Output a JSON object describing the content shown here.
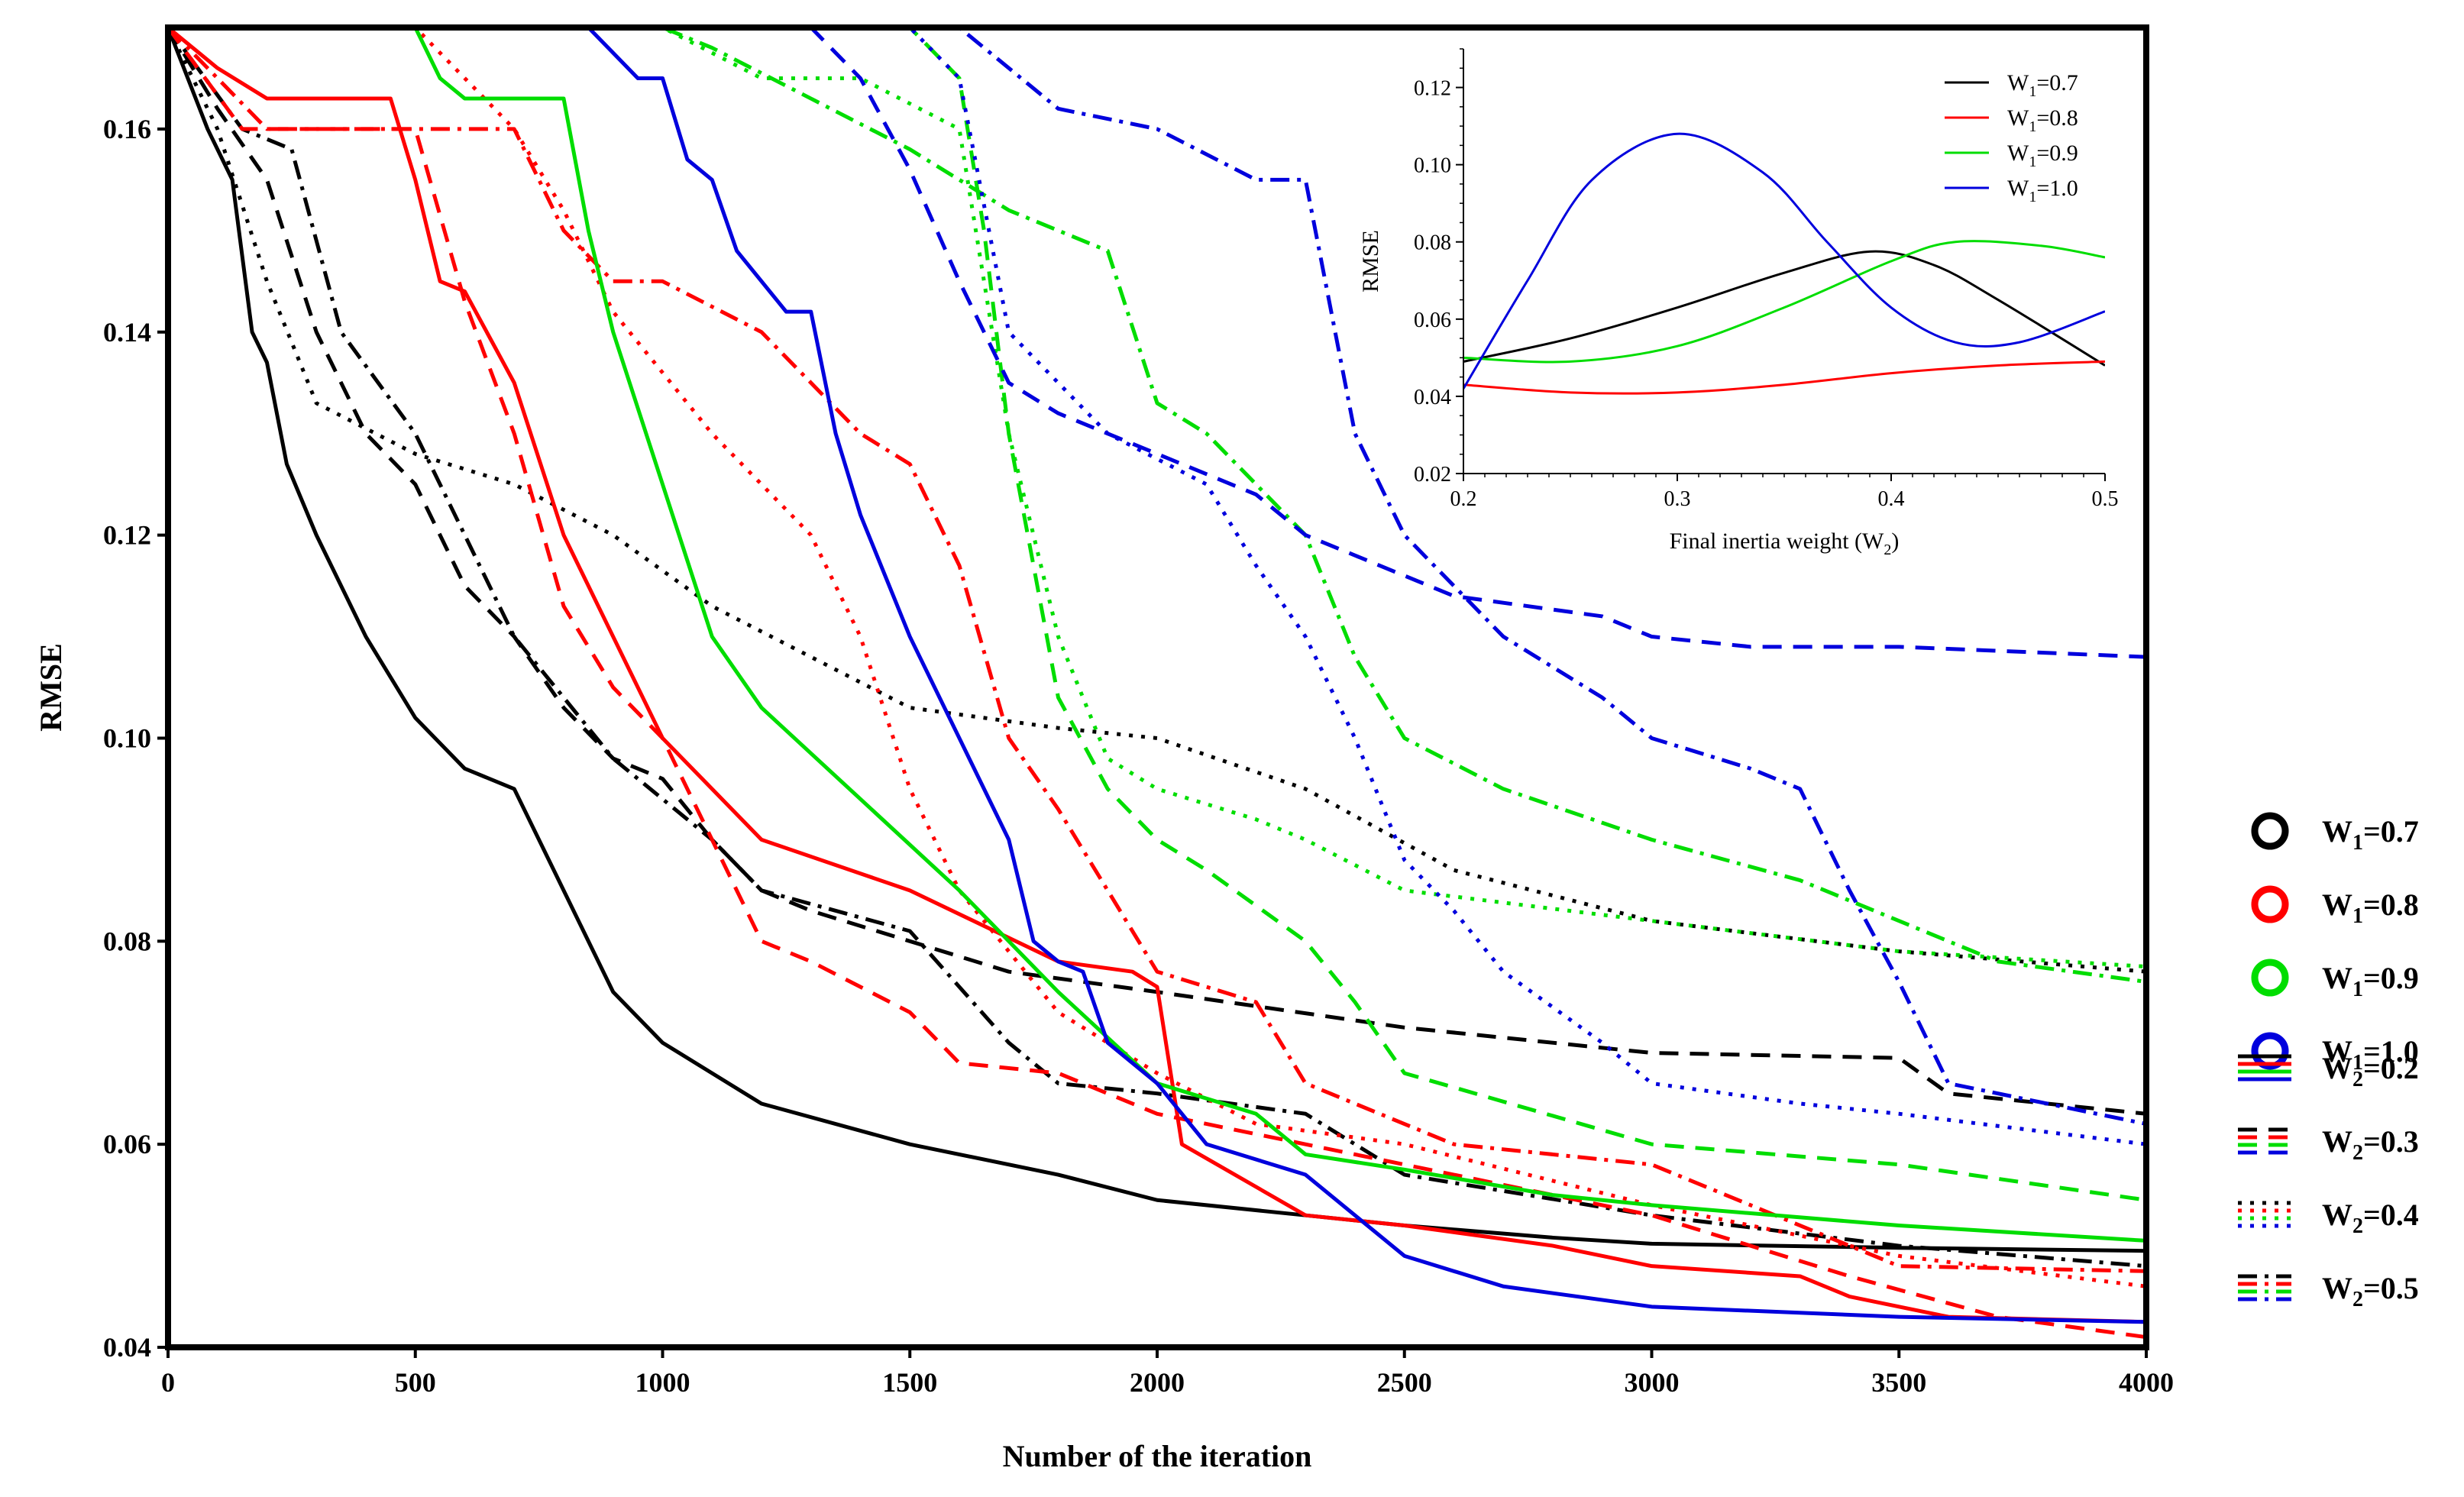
{
  "chart_data": [
    {
      "type": "line",
      "xlabel": "Number of the iteration",
      "ylabel": "RMSE",
      "xlim": [
        0,
        4000
      ],
      "ylim": [
        0.04,
        0.17
      ],
      "xticks": [
        "0",
        "500",
        "1000",
        "1500",
        "2000",
        "2500",
        "3000",
        "3500",
        "4000"
      ],
      "yticks": [
        "0.04",
        "0.06",
        "0.08",
        "0.10",
        "0.12",
        "0.14",
        "0.16"
      ],
      "xtick_values": [
        0,
        500,
        1000,
        1500,
        2000,
        2500,
        3000,
        3500,
        4000
      ],
      "ytick_values": [
        0.04,
        0.06,
        0.08,
        0.1,
        0.12,
        0.14,
        0.16
      ],
      "grid": false,
      "legend_position": "right",
      "color_legend": [
        {
          "label_main": "W",
          "label_sub": "1",
          "label_tail": "=0.7",
          "color": "#000000"
        },
        {
          "label_main": "W",
          "label_sub": "1",
          "label_tail": "=0.8",
          "color": "#ff0000"
        },
        {
          "label_main": "W",
          "label_sub": "1",
          "label_tail": "=0.9",
          "color": "#00dd00"
        },
        {
          "label_main": "W",
          "label_sub": "1",
          "label_tail": "=1.0",
          "color": "#0000dd"
        }
      ],
      "style_legend": [
        {
          "label_main": "W",
          "label_sub": "2",
          "label_tail": "=0.2",
          "dash": "solid"
        },
        {
          "label_main": "W",
          "label_sub": "2",
          "label_tail": "=0.3",
          "dash": "dashed"
        },
        {
          "label_main": "W",
          "label_sub": "2",
          "label_tail": "=0.4",
          "dash": "dotted"
        },
        {
          "label_main": "W",
          "label_sub": "2",
          "label_tail": "=0.5",
          "dash": "dashdot"
        }
      ],
      "series": [
        {
          "w1": 0.7,
          "w2": 0.2,
          "color": "#000000",
          "dash": "solid",
          "x": [
            0,
            40,
            80,
            130,
            170,
            200,
            240,
            300,
            400,
            500,
            600,
            700,
            800,
            900,
            1000,
            1200,
            1500,
            1800,
            2000,
            2300,
            2500,
            2800,
            3000,
            3500,
            4000
          ],
          "y": [
            0.17,
            0.165,
            0.16,
            0.155,
            0.14,
            0.137,
            0.127,
            0.12,
            0.11,
            0.102,
            0.097,
            0.095,
            0.085,
            0.075,
            0.07,
            0.064,
            0.06,
            0.057,
            0.0545,
            0.053,
            0.052,
            0.0508,
            0.0502,
            0.0498,
            0.0495
          ]
        },
        {
          "w1": 0.7,
          "w2": 0.3,
          "color": "#000000",
          "dash": "dashed",
          "x": [
            0,
            100,
            200,
            300,
            400,
            500,
            600,
            700,
            800,
            900,
            1000,
            1100,
            1200,
            1300,
            1500,
            1700,
            2000,
            2500,
            3000,
            3500,
            3600,
            4000
          ],
          "y": [
            0.17,
            0.162,
            0.155,
            0.14,
            0.13,
            0.125,
            0.115,
            0.11,
            0.103,
            0.098,
            0.096,
            0.09,
            0.085,
            0.083,
            0.08,
            0.077,
            0.075,
            0.0715,
            0.069,
            0.0685,
            0.065,
            0.063
          ]
        },
        {
          "w1": 0.7,
          "w2": 0.4,
          "color": "#000000",
          "dash": "dotted",
          "x": [
            0,
            100,
            200,
            300,
            500,
            700,
            900,
            1100,
            1300,
            1500,
            1800,
            2000,
            2300,
            2600,
            3000,
            3500,
            4000
          ],
          "y": [
            0.17,
            0.16,
            0.145,
            0.133,
            0.128,
            0.125,
            0.12,
            0.113,
            0.108,
            0.103,
            0.101,
            0.1,
            0.095,
            0.087,
            0.082,
            0.079,
            0.077
          ]
        },
        {
          "w1": 0.7,
          "w2": 0.5,
          "color": "#000000",
          "dash": "dashdot",
          "x": [
            0,
            150,
            250,
            350,
            500,
            700,
            900,
            1100,
            1200,
            1500,
            1700,
            1800,
            2000,
            2300,
            2500,
            3000,
            3500,
            4000
          ],
          "y": [
            0.17,
            0.16,
            0.158,
            0.14,
            0.13,
            0.11,
            0.098,
            0.09,
            0.085,
            0.081,
            0.07,
            0.066,
            0.065,
            0.063,
            0.057,
            0.053,
            0.05,
            0.048
          ]
        },
        {
          "w1": 0.8,
          "w2": 0.2,
          "color": "#ff0000",
          "dash": "solid",
          "x": [
            0,
            100,
            200,
            300,
            450,
            500,
            550,
            600,
            700,
            800,
            900,
            1000,
            1200,
            1500,
            1800,
            1950,
            2000,
            2050,
            2300,
            2500,
            2800,
            3000,
            3300,
            3400,
            3600,
            4000
          ],
          "y": [
            0.17,
            0.166,
            0.163,
            0.163,
            0.163,
            0.155,
            0.145,
            0.144,
            0.135,
            0.12,
            0.11,
            0.1,
            0.09,
            0.085,
            0.078,
            0.077,
            0.0755,
            0.06,
            0.053,
            0.052,
            0.05,
            0.048,
            0.047,
            0.045,
            0.043,
            0.0425
          ]
        },
        {
          "w1": 0.8,
          "w2": 0.3,
          "color": "#ff0000",
          "dash": "dashed",
          "x": [
            0,
            150,
            300,
            500,
            600,
            700,
            800,
            900,
            1000,
            1100,
            1200,
            1300,
            1500,
            1600,
            1800,
            2000,
            2300,
            2600,
            3000,
            3400,
            3700,
            4000
          ],
          "y": [
            0.17,
            0.16,
            0.16,
            0.16,
            0.143,
            0.13,
            0.113,
            0.105,
            0.1,
            0.09,
            0.08,
            0.078,
            0.073,
            0.068,
            0.067,
            0.063,
            0.06,
            0.057,
            0.053,
            0.047,
            0.043,
            0.041
          ]
        },
        {
          "w1": 0.8,
          "w2": 0.4,
          "color": "#ff0000",
          "dash": "dotted",
          "x": [
            0,
            200,
            500,
            600,
            700,
            800,
            900,
            1100,
            1300,
            1400,
            1500,
            1600,
            1800,
            2000,
            2200,
            2500,
            3000,
            3500,
            4000
          ],
          "y": [
            0.17,
            0.17,
            0.17,
            0.165,
            0.16,
            0.152,
            0.142,
            0.13,
            0.12,
            0.11,
            0.095,
            0.085,
            0.073,
            0.067,
            0.062,
            0.06,
            0.054,
            0.049,
            0.046
          ]
        },
        {
          "w1": 0.8,
          "w2": 0.5,
          "color": "#ff0000",
          "dash": "dashdot",
          "x": [
            0,
            200,
            400,
            700,
            800,
            900,
            1000,
            1200,
            1400,
            1500,
            1600,
            1700,
            1800,
            2000,
            2200,
            2300,
            2600,
            3000,
            3500,
            4000
          ],
          "y": [
            0.17,
            0.16,
            0.16,
            0.16,
            0.15,
            0.145,
            0.145,
            0.14,
            0.13,
            0.127,
            0.117,
            0.1,
            0.093,
            0.077,
            0.074,
            0.066,
            0.06,
            0.058,
            0.048,
            0.0475
          ]
        },
        {
          "w1": 0.9,
          "w2": 0.2,
          "color": "#00dd00",
          "dash": "solid",
          "x": [
            0,
            400,
            500,
            550,
            600,
            700,
            800,
            850,
            900,
            1000,
            1100,
            1200,
            1400,
            1600,
            1800,
            2000,
            2200,
            2300,
            2500,
            2800,
            3000,
            3500,
            4000
          ],
          "y": [
            0.17,
            0.17,
            0.17,
            0.165,
            0.163,
            0.163,
            0.163,
            0.15,
            0.14,
            0.125,
            0.11,
            0.103,
            0.094,
            0.085,
            0.075,
            0.066,
            0.063,
            0.059,
            0.0575,
            0.055,
            0.054,
            0.052,
            0.0505
          ]
        },
        {
          "w1": 0.9,
          "w2": 0.3,
          "color": "#00dd00",
          "dash": "dashed",
          "x": [
            0,
            500,
            1000,
            1300,
            1500,
            1600,
            1650,
            1700,
            1800,
            1900,
            2000,
            2100,
            2300,
            2400,
            2500,
            3000,
            3500,
            4000
          ],
          "y": [
            0.17,
            0.17,
            0.17,
            0.17,
            0.17,
            0.165,
            0.15,
            0.13,
            0.104,
            0.095,
            0.09,
            0.087,
            0.08,
            0.074,
            0.067,
            0.06,
            0.058,
            0.0545
          ]
        },
        {
          "w1": 0.9,
          "w2": 0.4,
          "color": "#00dd00",
          "dash": "dotted",
          "x": [
            0,
            800,
            1000,
            1200,
            1400,
            1600,
            1700,
            1800,
            1900,
            2000,
            2200,
            2300,
            2500,
            3000,
            3500,
            4000
          ],
          "y": [
            0.17,
            0.17,
            0.17,
            0.165,
            0.165,
            0.16,
            0.13,
            0.11,
            0.098,
            0.095,
            0.092,
            0.09,
            0.085,
            0.082,
            0.079,
            0.0775
          ]
        },
        {
          "w1": 0.9,
          "w2": 0.5,
          "color": "#00dd00",
          "dash": "dashdot",
          "x": [
            0,
            1000,
            1100,
            1300,
            1500,
            1600,
            1700,
            1900,
            2000,
            2100,
            2200,
            2300,
            2400,
            2500,
            2700,
            3000,
            3300,
            3500,
            3700,
            4000
          ],
          "y": [
            0.17,
            0.17,
            0.168,
            0.163,
            0.158,
            0.155,
            0.152,
            0.148,
            0.133,
            0.13,
            0.125,
            0.12,
            0.108,
            0.1,
            0.095,
            0.09,
            0.086,
            0.082,
            0.078,
            0.076
          ]
        },
        {
          "w1": 1.0,
          "w2": 0.2,
          "color": "#0000dd",
          "dash": "solid",
          "x": [
            0,
            700,
            850,
            950,
            1000,
            1050,
            1100,
            1150,
            1200,
            1250,
            1300,
            1350,
            1400,
            1500,
            1600,
            1700,
            1750,
            1800,
            1850,
            1900,
            2000,
            2100,
            2300,
            2400,
            2500,
            2700,
            3000,
            3500,
            4000
          ],
          "y": [
            0.17,
            0.17,
            0.17,
            0.165,
            0.165,
            0.157,
            0.155,
            0.148,
            0.145,
            0.142,
            0.142,
            0.13,
            0.122,
            0.11,
            0.1,
            0.09,
            0.08,
            0.078,
            0.077,
            0.07,
            0.066,
            0.06,
            0.057,
            0.053,
            0.049,
            0.046,
            0.044,
            0.043,
            0.0425
          ]
        },
        {
          "w1": 1.0,
          "w2": 0.3,
          "color": "#0000dd",
          "dash": "dashed",
          "x": [
            0,
            1000,
            1300,
            1400,
            1500,
            1600,
            1700,
            1800,
            2000,
            2200,
            2300,
            2400,
            2600,
            2900,
            3000,
            3200,
            3500,
            4000
          ],
          "y": [
            0.17,
            0.17,
            0.17,
            0.165,
            0.156,
            0.145,
            0.135,
            0.132,
            0.128,
            0.124,
            0.12,
            0.118,
            0.114,
            0.112,
            0.11,
            0.109,
            0.109,
            0.108
          ]
        },
        {
          "w1": 1.0,
          "w2": 0.4,
          "color": "#0000dd",
          "dash": "dotted",
          "x": [
            0,
            1000,
            1500,
            1600,
            1700,
            1900,
            2100,
            2200,
            2300,
            2400,
            2500,
            2600,
            2700,
            2900,
            3000,
            3300,
            3500,
            4000
          ],
          "y": [
            0.17,
            0.17,
            0.17,
            0.165,
            0.14,
            0.13,
            0.125,
            0.117,
            0.11,
            0.1,
            0.088,
            0.083,
            0.077,
            0.07,
            0.066,
            0.064,
            0.063,
            0.06
          ]
        },
        {
          "w1": 1.0,
          "w2": 0.5,
          "color": "#0000dd",
          "dash": "dashdot",
          "x": [
            0,
            1000,
            1500,
            1600,
            1800,
            2000,
            2200,
            2300,
            2400,
            2500,
            2700,
            2900,
            3000,
            3200,
            3300,
            3400,
            3500,
            3600,
            4000
          ],
          "y": [
            0.17,
            0.17,
            0.17,
            0.17,
            0.162,
            0.16,
            0.155,
            0.155,
            0.13,
            0.12,
            0.11,
            0.104,
            0.1,
            0.097,
            0.095,
            0.085,
            0.076,
            0.066,
            0.062
          ]
        }
      ]
    },
    {
      "type": "line",
      "inset": true,
      "xlabel_main": "Final inertia weight (W",
      "xlabel_sub": "2",
      "xlabel_tail": ")",
      "ylabel": "RMSE",
      "xlim": [
        0.2,
        0.5
      ],
      "ylim": [
        0.02,
        0.13
      ],
      "xticks": [
        "0.2",
        "0.3",
        "0.4",
        "0.5"
      ],
      "yticks": [
        "0.02",
        "0.04",
        "0.06",
        "0.08",
        "0.10",
        "0.12"
      ],
      "xtick_values": [
        0.2,
        0.3,
        0.4,
        0.5
      ],
      "ytick_values": [
        0.02,
        0.04,
        0.06,
        0.08,
        0.1,
        0.12
      ],
      "grid": false,
      "legend_position": "top-right",
      "series": [
        {
          "label_main": "W",
          "label_sub": "1",
          "label_tail": "=0.7",
          "color": "#000000",
          "x": [
            0.2,
            0.25,
            0.3,
            0.35,
            0.39,
            0.42,
            0.45,
            0.5
          ],
          "y": [
            0.049,
            0.055,
            0.063,
            0.072,
            0.0775,
            0.074,
            0.065,
            0.048
          ]
        },
        {
          "label_main": "W",
          "label_sub": "1",
          "label_tail": "=0.8",
          "color": "#ff0000",
          "x": [
            0.2,
            0.25,
            0.3,
            0.35,
            0.4,
            0.45,
            0.5
          ],
          "y": [
            0.043,
            0.041,
            0.041,
            0.043,
            0.046,
            0.048,
            0.049
          ]
        },
        {
          "label_main": "W",
          "label_sub": "1",
          "label_tail": "=0.9",
          "color": "#00dd00",
          "x": [
            0.2,
            0.25,
            0.3,
            0.35,
            0.4,
            0.43,
            0.47,
            0.5
          ],
          "y": [
            0.05,
            0.049,
            0.053,
            0.063,
            0.075,
            0.08,
            0.079,
            0.076
          ]
        },
        {
          "label_main": "W",
          "label_sub": "1",
          "label_tail": "=1.0",
          "color": "#0000dd",
          "x": [
            0.2,
            0.23,
            0.26,
            0.3,
            0.34,
            0.37,
            0.4,
            0.43,
            0.46,
            0.5
          ],
          "y": [
            0.042,
            0.07,
            0.096,
            0.108,
            0.098,
            0.08,
            0.063,
            0.054,
            0.054,
            0.062
          ]
        }
      ]
    }
  ]
}
